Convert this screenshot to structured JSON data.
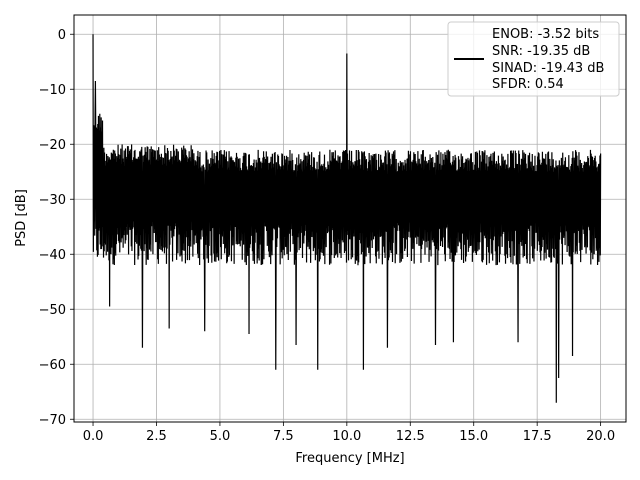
{
  "chart_data": {
    "type": "line",
    "xlabel": "Frequency [MHz]",
    "ylabel": "PSD [dB]",
    "xlim": [
      -0.75,
      21.0
    ],
    "ylim": [
      -70.5,
      3.5
    ],
    "grid": true,
    "x_ticks": [
      0.0,
      2.5,
      5.0,
      7.5,
      10.0,
      12.5,
      15.0,
      17.5,
      20.0
    ],
    "x_tick_labels": [
      "0.0",
      "2.5",
      "5.0",
      "7.5",
      "10.0",
      "12.5",
      "15.0",
      "17.5",
      "20.0"
    ],
    "y_ticks": [
      0,
      -10,
      -20,
      -30,
      -40,
      -50,
      -60,
      -70
    ],
    "y_tick_labels": [
      "0",
      "−10",
      "−20",
      "−30",
      "−40",
      "−50",
      "−60",
      "−70"
    ],
    "legend": {
      "placement": "top-right",
      "entries": [
        "ENOB: -3.52 bits",
        "SNR: -19.35 dB",
        "SINAD: -19.43 dB",
        "SFDR: 0.54"
      ]
    },
    "series": [
      {
        "color": "#000000",
        "x_start": 0.0,
        "x_end": 20.0,
        "noise_band": {
          "upper": -17,
          "lower": -40
        },
        "spikes": [
          {
            "x": 0.0,
            "y": 0.0
          },
          {
            "x": 0.1,
            "y": -8.5
          },
          {
            "x": 10.0,
            "y": -3.5
          }
        ],
        "dips": [
          {
            "x": 0.65,
            "y": -49.5
          },
          {
            "x": 1.95,
            "y": -57.0
          },
          {
            "x": 3.0,
            "y": -53.5
          },
          {
            "x": 4.4,
            "y": -54.0
          },
          {
            "x": 6.15,
            "y": -54.5
          },
          {
            "x": 7.2,
            "y": -61.0
          },
          {
            "x": 8.0,
            "y": -56.5
          },
          {
            "x": 8.85,
            "y": -61.0
          },
          {
            "x": 10.65,
            "y": -61.0
          },
          {
            "x": 11.6,
            "y": -57.0
          },
          {
            "x": 13.5,
            "y": -56.5
          },
          {
            "x": 14.2,
            "y": -56.0
          },
          {
            "x": 16.75,
            "y": -56.0
          },
          {
            "x": 18.25,
            "y": -67.0
          },
          {
            "x": 18.35,
            "y": -62.5
          },
          {
            "x": 18.9,
            "y": -58.5
          }
        ]
      }
    ]
  }
}
